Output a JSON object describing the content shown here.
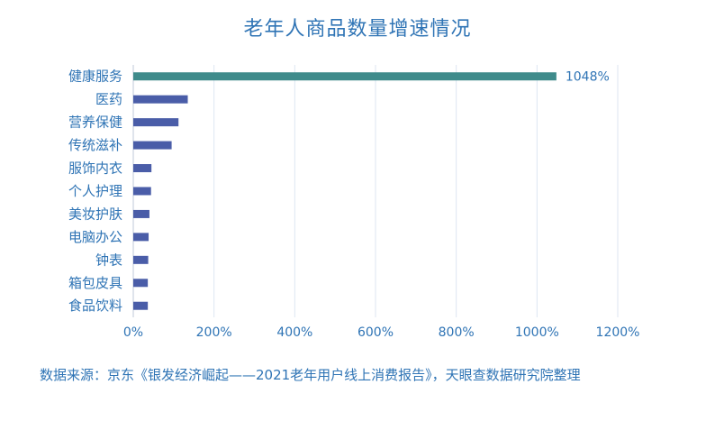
{
  "chart_data": {
    "type": "bar",
    "orientation": "horizontal",
    "title": "老年人商品数量增速情况",
    "categories": [
      "健康服务",
      "医药",
      "营养保健",
      "传统滋补",
      "服饰内衣",
      "个人护理",
      "美妆护肤",
      "电脑办公",
      "钟表",
      "箱包皮具",
      "食品饮料"
    ],
    "values": [
      1048,
      135,
      112,
      95,
      45,
      44,
      40,
      38,
      37,
      36,
      36
    ],
    "value_labels": [
      "1048%",
      "",
      "",
      "",
      "",
      "",
      "",
      "",
      "",
      "",
      ""
    ],
    "xlim": [
      0,
      1200
    ],
    "xticks": [
      "0%",
      "200%",
      "400%",
      "600%",
      "800%",
      "1000%",
      "1200%"
    ],
    "xlabel": "",
    "ylabel": "",
    "grid": "vertical",
    "colors": {
      "highlight": "#3f8b8b",
      "bar": "#4a5da8",
      "title": "#2f74b5",
      "text": "#2f74b5",
      "grid": "#dde6f2"
    }
  },
  "source": "数据来源：京东《银发经济崛起——2021老年用户线上消费报告》，天眼查数据研究院整理"
}
